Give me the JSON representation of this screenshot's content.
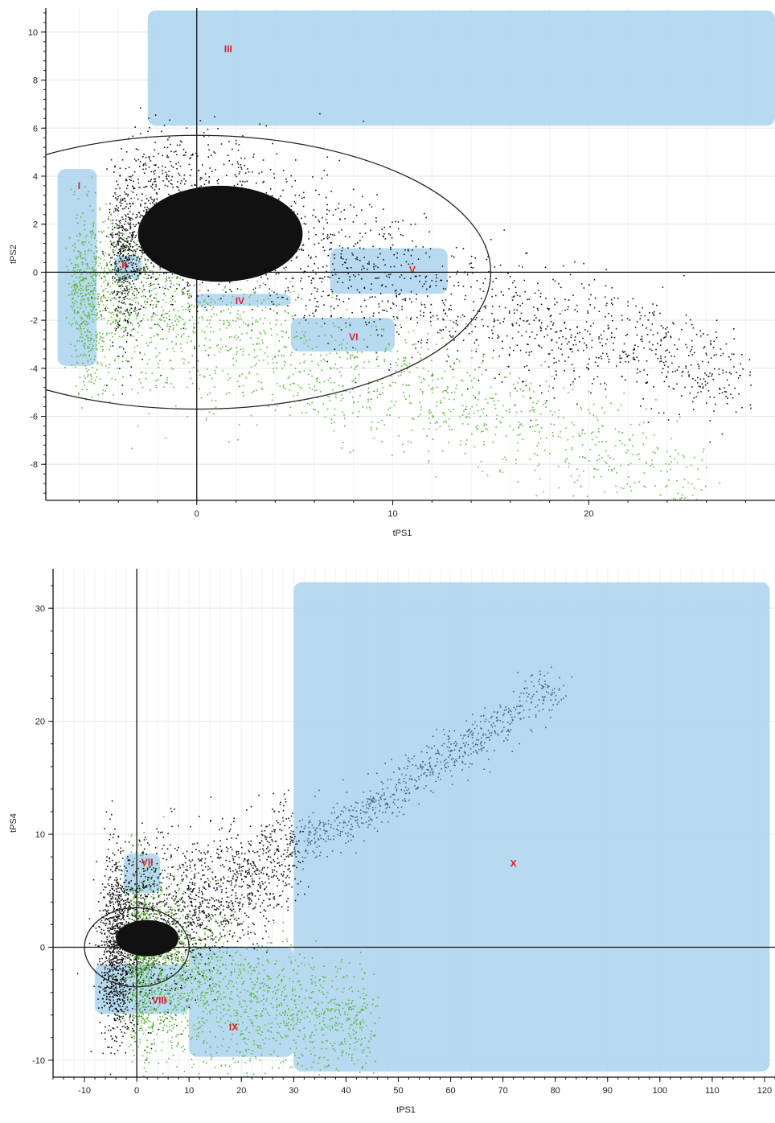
{
  "chart_data": [
    {
      "type": "scatter",
      "title": "",
      "xlabel": "tPS1",
      "ylabel": "tPS2",
      "xlim": [
        -7.7,
        29.5
      ],
      "ylim": [
        -9.5,
        11
      ],
      "xticks": [
        0,
        10,
        20
      ],
      "yticks": [
        -8,
        -6,
        -4,
        -2,
        0,
        2,
        4,
        6,
        8,
        10
      ],
      "grid": true,
      "legend": "none",
      "colors": {
        "black_points": "#111111",
        "green_points": "#5cb83c",
        "region_fill": "#aad3ef",
        "region_label": "#e02020"
      },
      "hotelling_ellipse": {
        "cx": 0,
        "cy": 0,
        "rx": 15,
        "ry": 5.7
      },
      "regions": [
        {
          "label": "I",
          "x0": -7.1,
          "x1": -5.1,
          "y0": -3.9,
          "y1": 4.3,
          "label_x": -6.0,
          "label_y": 3.6
        },
        {
          "label": "II",
          "x0": -4.2,
          "x1": -2.8,
          "y0": -0.3,
          "y1": 0.7,
          "label_x": -3.7,
          "label_y": 0.3
        },
        {
          "label": "III",
          "x0": -2.5,
          "x1": 29.5,
          "y0": 6.1,
          "y1": 10.9,
          "label_x": 1.6,
          "label_y": 9.3
        },
        {
          "label": "IV",
          "x0": -0.1,
          "x1": 4.8,
          "y0": -1.4,
          "y1": -0.9,
          "label_x": 2.2,
          "label_y": -1.2
        },
        {
          "label": "V",
          "x0": 6.8,
          "x1": 12.8,
          "y0": -0.9,
          "y1": 1.0,
          "label_x": 11.0,
          "label_y": 0.1
        },
        {
          "label": "VI",
          "x0": 4.8,
          "x1": 10.1,
          "y0": -3.3,
          "y1": -1.9,
          "label_x": 8.0,
          "label_y": -2.7
        }
      ],
      "series": [
        {
          "color": "black",
          "x": [
            -4,
            -2,
            0,
            2,
            4,
            6,
            8,
            10,
            14,
            18,
            22,
            26,
            28
          ],
          "y": [
            0.5,
            2.5,
            2.0,
            2.5,
            1.5,
            1.0,
            0.5,
            -0.5,
            -1.5,
            -2.5,
            -3.0,
            -4.0,
            -4.5
          ]
        },
        {
          "color": "green",
          "x": [
            -6,
            -4,
            -2,
            0,
            2,
            4,
            6,
            8,
            10,
            12,
            14,
            18,
            22,
            26
          ],
          "y": [
            -1.0,
            -1.0,
            -1.5,
            -2.0,
            -2.5,
            -3.0,
            -3.5,
            -4.0,
            -4.5,
            -5.0,
            -5.5,
            -6.5,
            -7.5,
            -9.0
          ]
        }
      ]
    },
    {
      "type": "scatter",
      "title": "",
      "xlabel": "tPS1",
      "ylabel": "tPS4",
      "xlim": [
        -16,
        122
      ],
      "ylim": [
        -11.5,
        33.5
      ],
      "xticks": [
        -10,
        0,
        10,
        20,
        30,
        40,
        50,
        60,
        70,
        80,
        90,
        100,
        110,
        120
      ],
      "yticks": [
        -10,
        0,
        10,
        20,
        30
      ],
      "grid": true,
      "legend": "none",
      "colors": {
        "black_points": "#111111",
        "green_points": "#5cb83c",
        "slate_points": "#4b6478",
        "region_fill": "#aad3ef",
        "region_label": "#e02020"
      },
      "hotelling_ellipse": {
        "cx": 0,
        "cy": 0,
        "rx": 10,
        "ry": 3.5
      },
      "regions": [
        {
          "label": "VII",
          "x0": -2.5,
          "x1": 4.5,
          "y0": 4.8,
          "y1": 8.3,
          "label_x": 2.0,
          "label_y": 7.5
        },
        {
          "label": "VIII",
          "x0": -8,
          "x1": 10,
          "y0": -5.9,
          "y1": -1.5,
          "label_x": 4.3,
          "label_y": -4.7
        },
        {
          "label": "IX",
          "x0": 10,
          "x1": 30,
          "y0": -9.7,
          "y1": 0,
          "label_x": 18.5,
          "label_y": -7.1
        },
        {
          "label": "X",
          "x0": 30,
          "x1": 121,
          "y0": -11,
          "y1": 32.3,
          "label_x": 72,
          "label_y": 7.4
        }
      ],
      "series": [
        {
          "color": "black",
          "x": [
            -5,
            0,
            5,
            10,
            15,
            20,
            25,
            30
          ],
          "y": [
            0,
            1.0,
            2.0,
            3.0,
            4.5,
            5.5,
            7.0,
            9.0
          ]
        },
        {
          "color": "green",
          "x": [
            0,
            5,
            10,
            15,
            20,
            25,
            30,
            35,
            40,
            45
          ],
          "y": [
            -1,
            -1.5,
            -2.5,
            -3.5,
            -4.5,
            -5.0,
            -5.5,
            -6.0,
            -6.5,
            -7.0
          ]
        },
        {
          "color": "slate",
          "x": [
            30,
            40,
            50,
            55,
            60,
            70,
            77,
            80
          ],
          "y": [
            9,
            11,
            14,
            16,
            17,
            20,
            22.5,
            23
          ]
        }
      ]
    }
  ]
}
